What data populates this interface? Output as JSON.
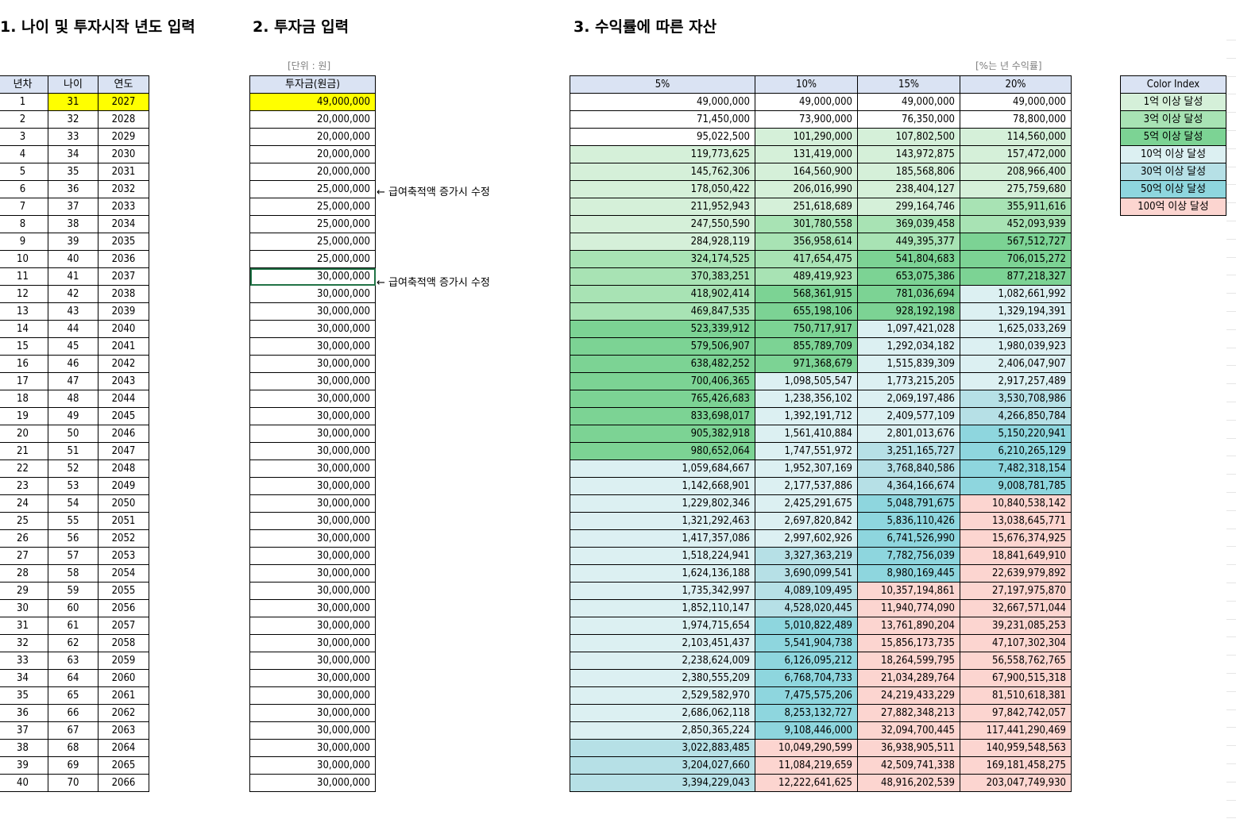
{
  "titles": {
    "section1": "1. 나이 및 투자시작 년도 입력",
    "section2": "2. 투자금 입력",
    "section3": "3. 수익률에 따른 자산"
  },
  "units": {
    "investment": "[단위 : 원]",
    "returns": "[%는 년 수익률]"
  },
  "age_table": {
    "headers": [
      "년차",
      "나이",
      "연도"
    ],
    "rows": [
      [
        1,
        31,
        2027
      ],
      [
        2,
        32,
        2028
      ],
      [
        3,
        33,
        2029
      ],
      [
        4,
        34,
        2030
      ],
      [
        5,
        35,
        2031
      ],
      [
        6,
        36,
        2032
      ],
      [
        7,
        37,
        2033
      ],
      [
        8,
        38,
        2034
      ],
      [
        9,
        39,
        2035
      ],
      [
        10,
        40,
        2036
      ],
      [
        11,
        41,
        2037
      ],
      [
        12,
        42,
        2038
      ],
      [
        13,
        43,
        2039
      ],
      [
        14,
        44,
        2040
      ],
      [
        15,
        45,
        2041
      ],
      [
        16,
        46,
        2042
      ],
      [
        17,
        47,
        2043
      ],
      [
        18,
        48,
        2044
      ],
      [
        19,
        49,
        2045
      ],
      [
        20,
        50,
        2046
      ],
      [
        21,
        51,
        2047
      ],
      [
        22,
        52,
        2048
      ],
      [
        23,
        53,
        2049
      ],
      [
        24,
        54,
        2050
      ],
      [
        25,
        55,
        2051
      ],
      [
        26,
        56,
        2052
      ],
      [
        27,
        57,
        2053
      ],
      [
        28,
        58,
        2054
      ],
      [
        29,
        59,
        2055
      ],
      [
        30,
        60,
        2056
      ],
      [
        31,
        61,
        2057
      ],
      [
        32,
        62,
        2058
      ],
      [
        33,
        63,
        2059
      ],
      [
        34,
        64,
        2060
      ],
      [
        35,
        65,
        2061
      ],
      [
        36,
        66,
        2062
      ],
      [
        37,
        67,
        2063
      ],
      [
        38,
        68,
        2064
      ],
      [
        39,
        69,
        2065
      ],
      [
        40,
        70,
        2066
      ]
    ]
  },
  "investment_table": {
    "header": "투자금(원금)",
    "values": [
      "49,000,000",
      "20,000,000",
      "20,000,000",
      "20,000,000",
      "20,000,000",
      "25,000,000",
      "25,000,000",
      "25,000,000",
      "25,000,000",
      "25,000,000",
      "30,000,000",
      "30,000,000",
      "30,000,000",
      "30,000,000",
      "30,000,000",
      "30,000,000",
      "30,000,000",
      "30,000,000",
      "30,000,000",
      "30,000,000",
      "30,000,000",
      "30,000,000",
      "30,000,000",
      "30,000,000",
      "30,000,000",
      "30,000,000",
      "30,000,000",
      "30,000,000",
      "30,000,000",
      "30,000,000",
      "30,000,000",
      "30,000,000",
      "30,000,000",
      "30,000,000",
      "30,000,000",
      "30,000,000",
      "30,000,000",
      "30,000,000",
      "30,000,000",
      "30,000,000"
    ]
  },
  "notes": [
    {
      "row": 6,
      "text": "← 급여축적액 증가시 수정"
    },
    {
      "row": 11,
      "text": "← 급여축적액 증가시 수정"
    }
  ],
  "returns_table": {
    "headers": [
      "5%",
      "10%",
      "15%",
      "20%"
    ],
    "rows": [
      [
        "49,000,000",
        "49,000,000",
        "49,000,000",
        "49,000,000"
      ],
      [
        "71,450,000",
        "73,900,000",
        "76,350,000",
        "78,800,000"
      ],
      [
        "95,022,500",
        "101,290,000",
        "107,802,500",
        "114,560,000"
      ],
      [
        "119,773,625",
        "131,419,000",
        "143,972,875",
        "157,472,000"
      ],
      [
        "145,762,306",
        "164,560,900",
        "185,568,806",
        "208,966,400"
      ],
      [
        "178,050,422",
        "206,016,990",
        "238,404,127",
        "275,759,680"
      ],
      [
        "211,952,943",
        "251,618,689",
        "299,164,746",
        "355,911,616"
      ],
      [
        "247,550,590",
        "301,780,558",
        "369,039,458",
        "452,093,939"
      ],
      [
        "284,928,119",
        "356,958,614",
        "449,395,377",
        "567,512,727"
      ],
      [
        "324,174,525",
        "417,654,475",
        "541,804,683",
        "706,015,272"
      ],
      [
        "370,383,251",
        "489,419,923",
        "653,075,386",
        "877,218,327"
      ],
      [
        "418,902,414",
        "568,361,915",
        "781,036,694",
        "1,082,661,992"
      ],
      [
        "469,847,535",
        "655,198,106",
        "928,192,198",
        "1,329,194,391"
      ],
      [
        "523,339,912",
        "750,717,917",
        "1,097,421,028",
        "1,625,033,269"
      ],
      [
        "579,506,907",
        "855,789,709",
        "1,292,034,182",
        "1,980,039,923"
      ],
      [
        "638,482,252",
        "971,368,679",
        "1,515,839,309",
        "2,406,047,907"
      ],
      [
        "700,406,365",
        "1,098,505,547",
        "1,773,215,205",
        "2,917,257,489"
      ],
      [
        "765,426,683",
        "1,238,356,102",
        "2,069,197,486",
        "3,530,708,986"
      ],
      [
        "833,698,017",
        "1,392,191,712",
        "2,409,577,109",
        "4,266,850,784"
      ],
      [
        "905,382,918",
        "1,561,410,884",
        "2,801,013,676",
        "5,150,220,941"
      ],
      [
        "980,652,064",
        "1,747,551,972",
        "3,251,165,727",
        "6,210,265,129"
      ],
      [
        "1,059,684,667",
        "1,952,307,169",
        "3,768,840,586",
        "7,482,318,154"
      ],
      [
        "1,142,668,901",
        "2,177,537,886",
        "4,364,166,674",
        "9,008,781,785"
      ],
      [
        "1,229,802,346",
        "2,425,291,675",
        "5,048,791,675",
        "10,840,538,142"
      ],
      [
        "1,321,292,463",
        "2,697,820,842",
        "5,836,110,426",
        "13,038,645,771"
      ],
      [
        "1,417,357,086",
        "2,997,602,926",
        "6,741,526,990",
        "15,676,374,925"
      ],
      [
        "1,518,224,941",
        "3,327,363,219",
        "7,782,756,039",
        "18,841,649,910"
      ],
      [
        "1,624,136,188",
        "3,690,099,541",
        "8,980,169,445",
        "22,639,979,892"
      ],
      [
        "1,735,342,997",
        "4,089,109,495",
        "10,357,194,861",
        "27,197,975,870"
      ],
      [
        "1,852,110,147",
        "4,528,020,445",
        "11,940,774,090",
        "32,667,571,044"
      ],
      [
        "1,974,715,654",
        "5,010,822,489",
        "13,761,890,204",
        "39,231,085,253"
      ],
      [
        "2,103,451,437",
        "5,541,904,738",
        "15,856,173,735",
        "47,107,302,304"
      ],
      [
        "2,238,624,009",
        "6,126,095,212",
        "18,264,599,795",
        "56,558,762,765"
      ],
      [
        "2,380,555,209",
        "6,768,704,733",
        "21,034,289,764",
        "67,900,515,318"
      ],
      [
        "2,529,582,970",
        "7,475,575,206",
        "24,219,433,229",
        "81,510,618,381"
      ],
      [
        "2,686,062,118",
        "8,253,132,727",
        "27,882,348,213",
        "97,842,742,057"
      ],
      [
        "2,850,365,224",
        "9,108,446,000",
        "32,094,700,445",
        "117,441,290,469"
      ],
      [
        "3,022,883,485",
        "10,049,290,599",
        "36,938,905,511",
        "140,959,548,563"
      ],
      [
        "3,204,027,660",
        "11,084,219,659",
        "42,509,741,338",
        "169,181,458,275"
      ],
      [
        "3,394,229,043",
        "12,222,641,625",
        "48,916,202,539",
        "203,047,749,930"
      ]
    ]
  },
  "color_index": {
    "header": "Color Index",
    "items": [
      {
        "label": "1억 이상 달성",
        "threshold": 100000000,
        "color": "#d5f0d9"
      },
      {
        "label": "3억 이상 달성",
        "threshold": 300000000,
        "color": "#a8e3b4"
      },
      {
        "label": "5억 이상 달성",
        "threshold": 500000000,
        "color": "#7cd394"
      },
      {
        "label": "10억 이상 달성",
        "threshold": 1000000000,
        "color": "#dcf0f2"
      },
      {
        "label": "30억 이상 달성",
        "threshold": 3000000000,
        "color": "#b6e0e6"
      },
      {
        "label": "50억 이상 달성",
        "threshold": 5000000000,
        "color": "#8ed6de"
      },
      {
        "label": "100억 이상 달성",
        "threshold": 10000000000,
        "color": "#fcd5d0"
      }
    ]
  },
  "colors": {
    "header_bg": "#dae3f3",
    "input_highlight": "#ffff00",
    "selection_border": "#217346"
  }
}
